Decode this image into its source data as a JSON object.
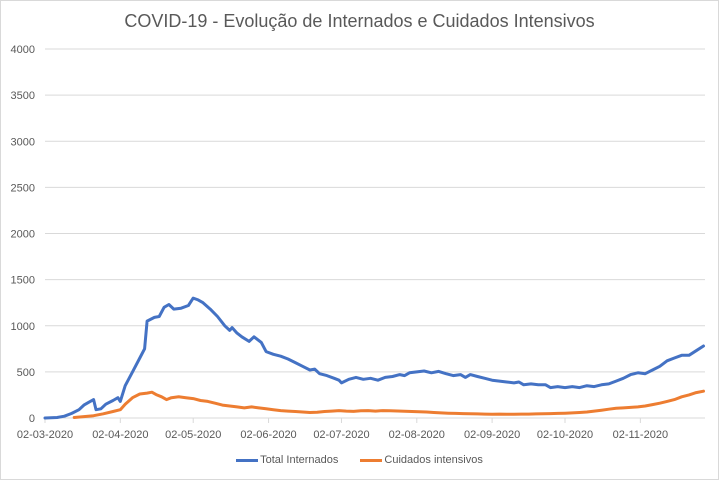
{
  "chart_data": {
    "type": "line",
    "title": "COVID-19 - Evolução de Internados e Cuidados Intensivos",
    "xlabel": "",
    "ylabel": "",
    "ylim": [
      0,
      4000
    ],
    "yticks": [
      "0",
      "500",
      "1000",
      "1500",
      "2000",
      "2500",
      "3000",
      "3500",
      "4000"
    ],
    "xticks": [
      "02-03-2020",
      "02-04-2020",
      "02-05-2020",
      "02-06-2020",
      "02-07-2020",
      "02-08-2020",
      "02-09-2020",
      "02-10-2020",
      "02-11-2020"
    ],
    "x_start": "02-03-2020",
    "x_end_day": 273,
    "grid": true,
    "legend_position": "bottom",
    "series": [
      {
        "name": "Total Internados",
        "color": "#4472c4",
        "points": [
          [
            0,
            0
          ],
          [
            5,
            5
          ],
          [
            8,
            20
          ],
          [
            11,
            50
          ],
          [
            14,
            90
          ],
          [
            16,
            140
          ],
          [
            18,
            170
          ],
          [
            20,
            200
          ],
          [
            21,
            90
          ],
          [
            23,
            100
          ],
          [
            25,
            150
          ],
          [
            28,
            190
          ],
          [
            30,
            220
          ],
          [
            31,
            180
          ],
          [
            33,
            350
          ],
          [
            36,
            500
          ],
          [
            39,
            650
          ],
          [
            41,
            750
          ],
          [
            42,
            1050
          ],
          [
            45,
            1090
          ],
          [
            47,
            1100
          ],
          [
            49,
            1200
          ],
          [
            51,
            1230
          ],
          [
            53,
            1180
          ],
          [
            56,
            1190
          ],
          [
            59,
            1220
          ],
          [
            61,
            1300
          ],
          [
            63,
            1280
          ],
          [
            65,
            1250
          ],
          [
            68,
            1180
          ],
          [
            71,
            1100
          ],
          [
            74,
            1000
          ],
          [
            76,
            950
          ],
          [
            77,
            980
          ],
          [
            79,
            920
          ],
          [
            81,
            880
          ],
          [
            84,
            830
          ],
          [
            86,
            880
          ],
          [
            89,
            820
          ],
          [
            91,
            720
          ],
          [
            94,
            690
          ],
          [
            97,
            670
          ],
          [
            100,
            640
          ],
          [
            103,
            600
          ],
          [
            106,
            560
          ],
          [
            109,
            520
          ],
          [
            111,
            530
          ],
          [
            113,
            480
          ],
          [
            116,
            460
          ],
          [
            119,
            430
          ],
          [
            121,
            410
          ],
          [
            122,
            380
          ],
          [
            125,
            420
          ],
          [
            128,
            440
          ],
          [
            131,
            420
          ],
          [
            134,
            430
          ],
          [
            137,
            410
          ],
          [
            140,
            440
          ],
          [
            143,
            450
          ],
          [
            146,
            470
          ],
          [
            148,
            460
          ],
          [
            150,
            490
          ],
          [
            153,
            500
          ],
          [
            156,
            510
          ],
          [
            159,
            490
          ],
          [
            162,
            505
          ],
          [
            165,
            480
          ],
          [
            168,
            460
          ],
          [
            171,
            470
          ],
          [
            173,
            440
          ],
          [
            175,
            470
          ],
          [
            178,
            450
          ],
          [
            181,
            430
          ],
          [
            184,
            410
          ],
          [
            187,
            400
          ],
          [
            190,
            390
          ],
          [
            193,
            380
          ],
          [
            195,
            390
          ],
          [
            197,
            360
          ],
          [
            200,
            370
          ],
          [
            203,
            360
          ],
          [
            206,
            360
          ],
          [
            208,
            330
          ],
          [
            211,
            340
          ],
          [
            214,
            330
          ],
          [
            217,
            340
          ],
          [
            220,
            330
          ],
          [
            223,
            350
          ],
          [
            226,
            340
          ],
          [
            229,
            360
          ],
          [
            232,
            370
          ],
          [
            235,
            400
          ],
          [
            238,
            430
          ],
          [
            241,
            470
          ],
          [
            244,
            490
          ],
          [
            247,
            480
          ],
          [
            250,
            520
          ],
          [
            253,
            560
          ],
          [
            256,
            620
          ],
          [
            259,
            650
          ],
          [
            262,
            680
          ],
          [
            265,
            680
          ],
          [
            268,
            730
          ],
          [
            271,
            780
          ]
        ]
      },
      {
        "name": "Cuidados intensivos",
        "color": "#ed7d31",
        "points": [
          [
            12,
            5
          ],
          [
            16,
            15
          ],
          [
            20,
            25
          ],
          [
            24,
            45
          ],
          [
            28,
            70
          ],
          [
            31,
            90
          ],
          [
            33,
            150
          ],
          [
            36,
            220
          ],
          [
            39,
            260
          ],
          [
            42,
            270
          ],
          [
            44,
            280
          ],
          [
            46,
            250
          ],
          [
            48,
            230
          ],
          [
            50,
            200
          ],
          [
            52,
            220
          ],
          [
            55,
            230
          ],
          [
            58,
            220
          ],
          [
            61,
            210
          ],
          [
            64,
            190
          ],
          [
            67,
            180
          ],
          [
            70,
            160
          ],
          [
            73,
            140
          ],
          [
            76,
            130
          ],
          [
            79,
            120
          ],
          [
            82,
            110
          ],
          [
            85,
            120
          ],
          [
            88,
            110
          ],
          [
            91,
            100
          ],
          [
            94,
            90
          ],
          [
            97,
            80
          ],
          [
            100,
            75
          ],
          [
            103,
            70
          ],
          [
            106,
            65
          ],
          [
            109,
            60
          ],
          [
            112,
            62
          ],
          [
            115,
            70
          ],
          [
            118,
            75
          ],
          [
            121,
            80
          ],
          [
            124,
            75
          ],
          [
            127,
            72
          ],
          [
            130,
            78
          ],
          [
            133,
            80
          ],
          [
            136,
            75
          ],
          [
            139,
            80
          ],
          [
            142,
            78
          ],
          [
            145,
            76
          ],
          [
            148,
            74
          ],
          [
            151,
            70
          ],
          [
            154,
            68
          ],
          [
            157,
            65
          ],
          [
            160,
            60
          ],
          [
            163,
            55
          ],
          [
            166,
            52
          ],
          [
            169,
            50
          ],
          [
            172,
            48
          ],
          [
            175,
            45
          ],
          [
            178,
            44
          ],
          [
            181,
            42
          ],
          [
            184,
            40
          ],
          [
            187,
            42
          ],
          [
            190,
            40
          ],
          [
            193,
            40
          ],
          [
            196,
            42
          ],
          [
            199,
            42
          ],
          [
            202,
            44
          ],
          [
            205,
            45
          ],
          [
            208,
            48
          ],
          [
            211,
            50
          ],
          [
            214,
            52
          ],
          [
            217,
            55
          ],
          [
            220,
            60
          ],
          [
            223,
            65
          ],
          [
            226,
            75
          ],
          [
            229,
            85
          ],
          [
            232,
            95
          ],
          [
            235,
            105
          ],
          [
            238,
            110
          ],
          [
            241,
            115
          ],
          [
            244,
            120
          ],
          [
            247,
            130
          ],
          [
            250,
            145
          ],
          [
            253,
            160
          ],
          [
            256,
            180
          ],
          [
            259,
            200
          ],
          [
            262,
            230
          ],
          [
            265,
            250
          ],
          [
            268,
            275
          ],
          [
            271,
            290
          ]
        ]
      }
    ]
  }
}
